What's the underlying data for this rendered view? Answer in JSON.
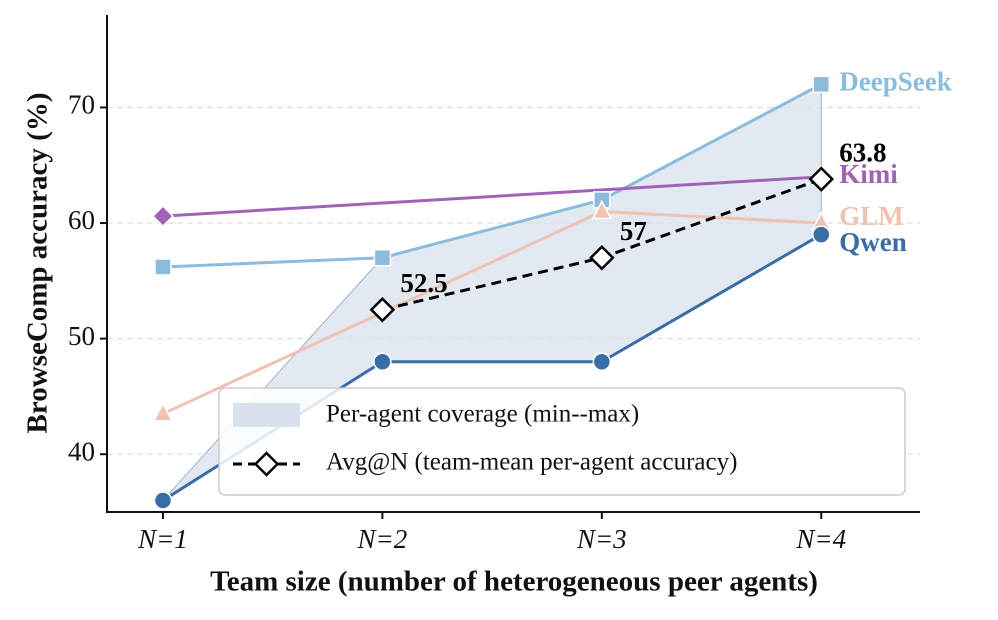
{
  "chart_data": {
    "type": "line",
    "xlabel": "Team size (number of heterogeneous peer agents)",
    "ylabel": "BrowseComp accuracy (%)",
    "xlim": [
      0.745,
      4.45
    ],
    "xticks": [
      {
        "value": 1,
        "label": "N=1"
      },
      {
        "value": 2,
        "label": "N=2"
      },
      {
        "value": 3,
        "label": "N=3"
      },
      {
        "value": 4,
        "label": "N=4"
      }
    ],
    "ylim": [
      35,
      78
    ],
    "yticks": [
      40,
      50,
      60,
      70
    ],
    "grid": true,
    "series": [
      {
        "name": "DeepSeek",
        "color": "#8bbcdc",
        "marker": "square",
        "x": [
          1,
          2,
          3,
          4
        ],
        "values": [
          56.2,
          57,
          62,
          72
        ]
      },
      {
        "name": "Kimi",
        "color": "#a064b6",
        "marker": "diamond",
        "x": [
          1,
          4
        ],
        "values": [
          60.6,
          64
        ]
      },
      {
        "name": "GLM",
        "color": "#efc3b3",
        "marker": "triangle",
        "x": [
          1,
          3,
          4
        ],
        "values": [
          43.5,
          61,
          60
        ]
      },
      {
        "name": "Qwen",
        "color": "#386ea5",
        "marker": "circle",
        "x": [
          1,
          2,
          3,
          4
        ],
        "values": [
          36,
          48,
          48,
          59
        ]
      }
    ],
    "coverage": {
      "name": "Per-agent coverage (min--max)",
      "color": "#d9e1ec",
      "x": [
        1,
        2,
        3,
        4
      ],
      "lower": [
        36,
        48,
        48,
        59
      ],
      "upper": [
        36,
        57,
        62,
        72
      ]
    },
    "average": {
      "name": "Avg@N (team-mean per-agent accuracy)",
      "color": "#000000",
      "x": [
        2,
        3,
        4
      ],
      "values": [
        52.5,
        57,
        63.8
      ],
      "value_labels": [
        "52.5",
        "57",
        "63.8"
      ]
    }
  }
}
